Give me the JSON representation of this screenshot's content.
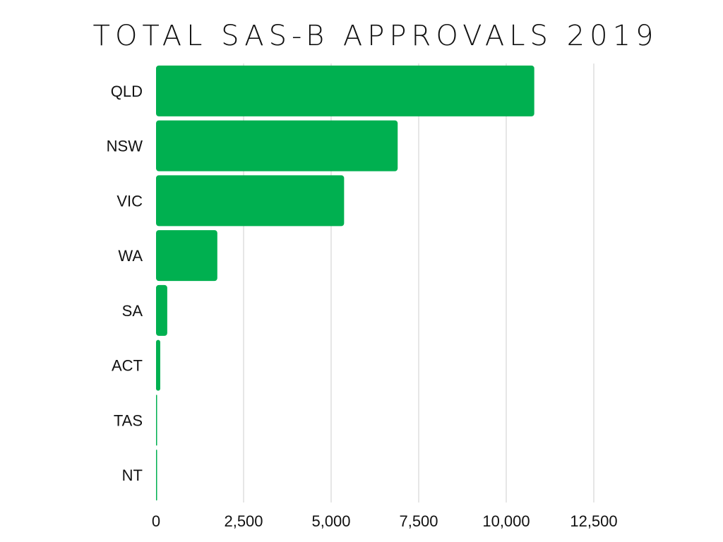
{
  "chart_data": {
    "type": "bar",
    "orientation": "horizontal",
    "title": "TOTAL SAS-B APPROVALS 2019",
    "xlabel": "",
    "ylabel": "",
    "categories": [
      "QLD",
      "NSW",
      "VIC",
      "WA",
      "SA",
      "ACT",
      "TAS",
      "NT"
    ],
    "values": [
      10800,
      6900,
      5370,
      1750,
      320,
      120,
      15,
      10
    ],
    "xlim": [
      0,
      12500
    ],
    "ticks": [
      0,
      2500,
      5000,
      7500,
      10000,
      12500
    ],
    "tick_labels": [
      "0",
      "2,500",
      "5,000",
      "7,500",
      "10,000",
      "12,500"
    ],
    "grid": "vertical",
    "legend": "none",
    "bar_color": "#00b050"
  }
}
